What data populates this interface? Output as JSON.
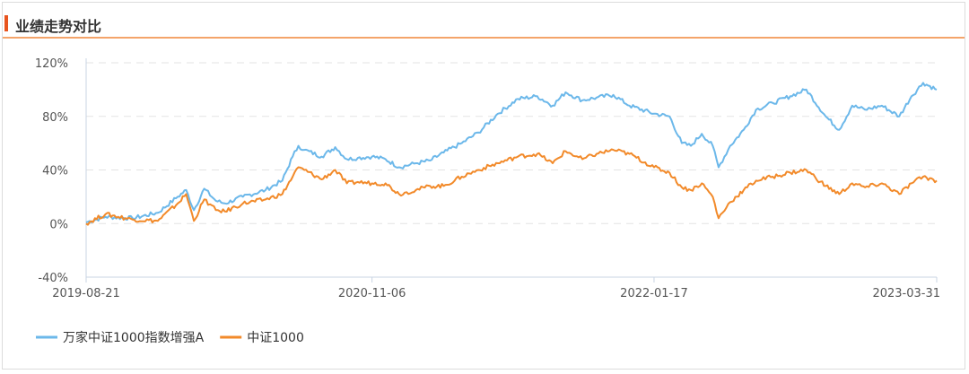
{
  "header": {
    "title": "业绩走势对比"
  },
  "colors": {
    "fund": "#6cb8ea",
    "index": "#f28a2a",
    "accent": "#e8541e"
  },
  "chart_data": {
    "type": "line",
    "title": "业绩走势对比",
    "x_ticks": [
      "2019-08-21",
      "2020-11-06",
      "2022-01-17",
      "2023-03-31"
    ],
    "x_range": [
      "2019-08-21",
      "2023-03-31"
    ],
    "y_ticks": [
      "120%",
      "80%",
      "40%",
      "0%",
      "-40%"
    ],
    "ylim": [
      -40,
      120
    ],
    "grid": true,
    "legend": "bottom-left",
    "series": [
      {
        "name": "万家中证1000指数增强A",
        "color": "#6cb8ea",
        "x": [
          "2019-08-21",
          "2019-09-20",
          "2019-11-01",
          "2019-12-10",
          "2020-01-10",
          "2020-01-23",
          "2020-02-04",
          "2020-02-20",
          "2020-03-09",
          "2020-03-23",
          "2020-04-20",
          "2020-05-25",
          "2020-06-20",
          "2020-07-06",
          "2020-07-15",
          "2020-07-24",
          "2020-08-20",
          "2020-09-10",
          "2020-09-28",
          "2020-10-15",
          "2020-11-06",
          "2020-11-27",
          "2020-12-18",
          "2021-01-13",
          "2021-02-04",
          "2021-02-25",
          "2021-03-25",
          "2021-04-20",
          "2021-05-20",
          "2021-06-20",
          "2021-07-20",
          "2021-08-13",
          "2021-09-02",
          "2021-09-28",
          "2021-10-20",
          "2021-11-15",
          "2021-12-10",
          "2022-01-17",
          "2022-02-10",
          "2022-03-01",
          "2022-03-15",
          "2022-04-01",
          "2022-04-18",
          "2022-04-27",
          "2022-05-15",
          "2022-06-05",
          "2022-06-24",
          "2022-07-20",
          "2022-08-16",
          "2022-09-10",
          "2022-10-10",
          "2022-10-31",
          "2022-11-20",
          "2022-12-10",
          "2023-01-05",
          "2023-02-01",
          "2023-02-20",
          "2023-03-10",
          "2023-03-31"
        ],
        "values": [
          1,
          5,
          4,
          8,
          20,
          25,
          10,
          26,
          17,
          15,
          20,
          25,
          32,
          50,
          58,
          55,
          50,
          57,
          48,
          49,
          50,
          48,
          42,
          45,
          47,
          53,
          60,
          68,
          82,
          93,
          95,
          88,
          98,
          92,
          94,
          96,
          88,
          82,
          80,
          60,
          58,
          67,
          58,
          42,
          58,
          70,
          85,
          90,
          95,
          100,
          80,
          70,
          88,
          85,
          88,
          80,
          95,
          105,
          100
        ]
      },
      {
        "name": "中证1000",
        "color": "#f28a2a",
        "x": [
          "2019-08-21",
          "2019-09-20",
          "2019-11-01",
          "2019-12-10",
          "2020-01-10",
          "2020-01-23",
          "2020-02-04",
          "2020-02-20",
          "2020-03-09",
          "2020-03-23",
          "2020-04-20",
          "2020-05-25",
          "2020-06-20",
          "2020-07-06",
          "2020-07-15",
          "2020-07-24",
          "2020-08-20",
          "2020-09-10",
          "2020-09-28",
          "2020-10-15",
          "2020-11-06",
          "2020-11-27",
          "2020-12-18",
          "2021-01-13",
          "2021-02-04",
          "2021-02-25",
          "2021-03-25",
          "2021-04-20",
          "2021-05-20",
          "2021-06-20",
          "2021-07-20",
          "2021-08-13",
          "2021-09-02",
          "2021-09-28",
          "2021-10-20",
          "2021-11-15",
          "2021-12-10",
          "2022-01-17",
          "2022-02-10",
          "2022-03-01",
          "2022-03-15",
          "2022-04-01",
          "2022-04-18",
          "2022-04-27",
          "2022-05-15",
          "2022-06-05",
          "2022-06-24",
          "2022-07-20",
          "2022-08-16",
          "2022-09-10",
          "2022-10-10",
          "2022-10-31",
          "2022-11-20",
          "2022-12-10",
          "2023-01-05",
          "2023-02-01",
          "2023-02-20",
          "2023-03-10",
          "2023-03-31"
        ],
        "values": [
          0,
          7,
          3,
          2,
          15,
          22,
          2,
          18,
          10,
          9,
          15,
          18,
          22,
          35,
          42,
          40,
          33,
          40,
          30,
          31,
          30,
          30,
          22,
          25,
          28,
          28,
          35,
          40,
          45,
          50,
          52,
          45,
          54,
          48,
          52,
          55,
          52,
          42,
          38,
          27,
          25,
          30,
          20,
          4,
          16,
          25,
          32,
          35,
          38,
          40,
          28,
          22,
          30,
          27,
          30,
          22,
          30,
          35,
          32
        ]
      }
    ]
  }
}
